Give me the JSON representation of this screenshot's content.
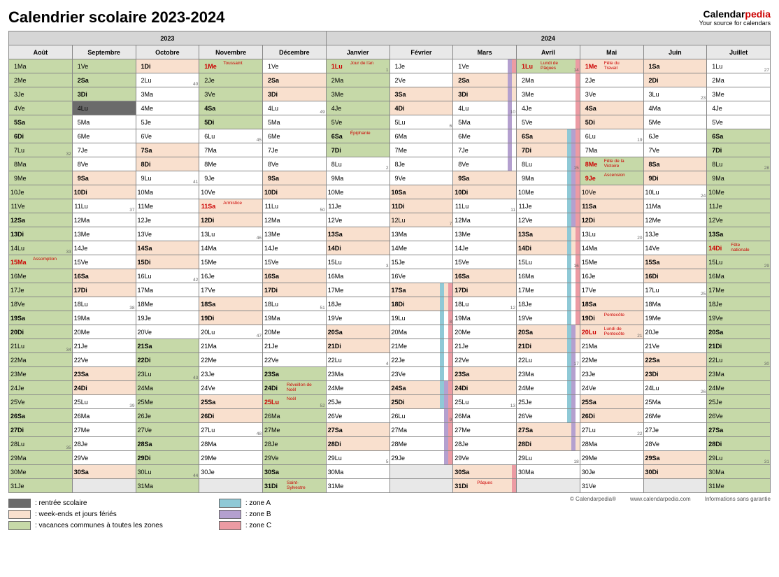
{
  "title": "Calendrier scolaire 2023-2024",
  "brand": {
    "name1": "Calendar",
    "name2": "pedia",
    "tagline": "Your source for calendars"
  },
  "years": [
    "2023",
    "2024"
  ],
  "year_cols": [
    5,
    7
  ],
  "months": [
    "Août",
    "Septembre",
    "Octobre",
    "Novembre",
    "Décembre",
    "Janvier",
    "Février",
    "Mars",
    "Avril",
    "Mai",
    "Juin",
    "Juillet"
  ],
  "month_lengths": [
    31,
    30,
    31,
    30,
    31,
    31,
    29,
    31,
    30,
    31,
    30,
    31
  ],
  "first_dow": [
    1,
    4,
    6,
    2,
    4,
    0,
    3,
    4,
    0,
    2,
    5,
    0
  ],
  "dow_labels": [
    "Lu",
    "Ma",
    "Me",
    "Je",
    "Ve",
    "Sa",
    "Di"
  ],
  "colors": {
    "rentree": "#6b6b6b",
    "weekend": "#f9e0ce",
    "commune": "#c6d9a8",
    "zoneA": "#8fc9d6",
    "zoneB": "#b4a0cf",
    "zoneC": "#ec9ba3",
    "empty": "#e8e8e8"
  },
  "fills": {
    "commune": {
      "0": {
        "1": 1,
        "2": 1,
        "3": 1,
        "4": 1,
        "5": 1,
        "6": 1,
        "7": 1,
        "8": 1,
        "9": 1,
        "10": 1,
        "11": 1,
        "12": 1,
        "13": 1,
        "14": 1,
        "15": 1,
        "16": 1,
        "17": 1,
        "18": 1,
        "19": 1,
        "20": 1,
        "21": 1,
        "22": 1,
        "23": 1,
        "24": 1,
        "25": 1,
        "26": 1,
        "27": 1,
        "28": 1,
        "29": 1,
        "30": 1,
        "31": 1
      },
      "1": {
        "1": 1,
        "2": 1,
        "3": 1
      },
      "2": {
        "21": 1,
        "22": 1,
        "23": 1,
        "24": 1,
        "25": 1,
        "26": 1,
        "27": 1,
        "28": 1,
        "29": 1,
        "30": 1,
        "31": 1
      },
      "3": {
        "1": 1,
        "2": 1,
        "3": 1,
        "4": 1,
        "5": 1
      },
      "4": {
        "23": 1,
        "24": 1,
        "25": 1,
        "26": 1,
        "27": 1,
        "28": 1,
        "29": 1,
        "30": 1,
        "31": 1
      },
      "5": {
        "1": 1,
        "2": 1,
        "3": 1,
        "4": 1,
        "5": 1,
        "6": 1,
        "7": 1
      },
      "8": {
        "1": 1
      },
      "9": {
        "8": 1,
        "9": 1
      },
      "11": {
        "6": 1,
        "7": 1,
        "8": 1,
        "9": 1,
        "10": 1,
        "11": 1,
        "12": 1,
        "13": 1,
        "14": 1,
        "15": 1,
        "16": 1,
        "17": 1,
        "18": 1,
        "19": 1,
        "20": 1,
        "21": 1,
        "22": 1,
        "23": 1,
        "24": 1,
        "25": 1,
        "26": 1,
        "27": 1,
        "28": 1,
        "29": 1,
        "30": 1,
        "31": 1
      }
    },
    "weekend": {
      "2": {
        "1": 1
      },
      "3": {
        "11": 1
      },
      "4": {
        "25": 1
      },
      "5": {
        "1": 1
      },
      "8": {
        "1": 1
      },
      "9": {
        "1": 1,
        "8": 1,
        "9": 1,
        "20": 1
      },
      "11": {
        "14": 1
      }
    },
    "rentree": {
      "1": {
        "4": 1
      }
    }
  },
  "zone_abc": {
    "6": {
      "10": "1",
      "11": "1",
      "12": "1",
      "17": "A.C",
      "18": "A.C",
      "19": "A.C",
      "20": "A.C",
      "21": "A.C",
      "22": "A.C",
      "23": "A.C",
      "24": "ABC",
      "25": "ABC",
      "26": ".BC",
      "27": ".BC",
      "28": ".BC",
      "29": ".BC"
    },
    "7": {
      "1": ".BC",
      "2": ".B.",
      "3": ".B.",
      "4": ".B.",
      "5": ".B.",
      "6": ".B.",
      "7": ".B.",
      "8": ".B.",
      "30": "..C",
      "31": "..C"
    },
    "8": {
      "1": "..C",
      "2": "..C",
      "3": "..C",
      "4": "..C",
      "5": "..C",
      "6": "ABC",
      "7": "ABC",
      "8": "ABC",
      "9": "ABC",
      "10": "ABC",
      "11": "ABC",
      "12": "ABC",
      "13": "A.C",
      "14": "A.C",
      "15": "A.C",
      "16": "A.C",
      "17": "A.C",
      "18": "A.C",
      "19": "A.C",
      "20": "AB.",
      "21": "AB.",
      "22": "AB.",
      "23": "AB.",
      "24": "AB.",
      "25": "AB.",
      "26": "AB.",
      "27": ".B.",
      "28": ".B."
    },
    "9": {
      "10": "1",
      "11": "1",
      "12": "1"
    }
  },
  "holidays": {
    "0": {
      "15": "Assomption"
    },
    "3": {
      "1": "Toussaint",
      "11": "Armistice"
    },
    "4": {
      "24": "Réveillon de Noël",
      "25": "Noël",
      "31": "Saint-Sylvestre"
    },
    "5": {
      "1": "Jour de l'an",
      "6": "Épiphanie"
    },
    "7": {
      "31": "Pâques"
    },
    "8": {
      "1": "Lundi de Pâques"
    },
    "9": {
      "1": "Fête du Travail",
      "8": "Fête de la Victoire",
      "9": "Ascension",
      "19": "Pentecôte",
      "20": "Lundi de Pentecôte"
    },
    "11": {
      "14": "Fête nationale"
    }
  },
  "red_days": {
    "0": {
      "15": 1
    },
    "3": {
      "1": 1,
      "11": 1
    },
    "4": {
      "25": 1
    },
    "5": {
      "1": 1
    },
    "8": {
      "1": 1
    },
    "9": {
      "1": 1,
      "8": 1,
      "9": 1,
      "20": 1
    },
    "11": {
      "14": 1
    }
  },
  "weeks": {
    "0": {
      "7": 32,
      "14": 33,
      "21": 34,
      "28": 35
    },
    "1": {
      "4": 36,
      "11": 37,
      "18": 38,
      "25": 39
    },
    "2": {
      "2": 40,
      "9": 41,
      "16": 42,
      "23": 43,
      "30": 44
    },
    "3": {
      "6": 45,
      "13": 46,
      "20": 47,
      "27": 48
    },
    "4": {
      "4": 49,
      "11": 50,
      "18": 51,
      "25": 52
    },
    "5": {
      "1": 1,
      "8": 2,
      "15": 3,
      "22": 4,
      "29": 5
    },
    "6": {
      "5": 6,
      "12": 7,
      "19": 8,
      "26": 9
    },
    "7": {
      "4": 10,
      "11": 11,
      "18": 12,
      "25": 13
    },
    "8": {
      "1": 14,
      "8": 15,
      "15": 16,
      "22": 17,
      "29": 18
    },
    "9": {
      "6": 19,
      "13": 20,
      "20": 21,
      "27": 22
    },
    "10": {
      "3": 23,
      "10": 24,
      "17": 25,
      "24": 26
    },
    "11": {
      "1": 27,
      "8": 28,
      "15": 29,
      "22": 30,
      "29": 31
    }
  },
  "legend": [
    {
      "color": "rentree",
      "label": ": rentrée scolaire"
    },
    {
      "color": "weekend",
      "label": ": week-ends et jours fériés"
    },
    {
      "color": "commune",
      "label": ": vacances communes à toutes les zones"
    },
    {
      "color": "zoneA",
      "label": ": zone A"
    },
    {
      "color": "zoneB",
      "label": ": zone B"
    },
    {
      "color": "zoneC",
      "label": ": zone C"
    }
  ],
  "footer": {
    "copy": "© Calendarpedia®",
    "url": "www.calendarpedia.com",
    "disclaimer": "Informations sans garantie"
  }
}
